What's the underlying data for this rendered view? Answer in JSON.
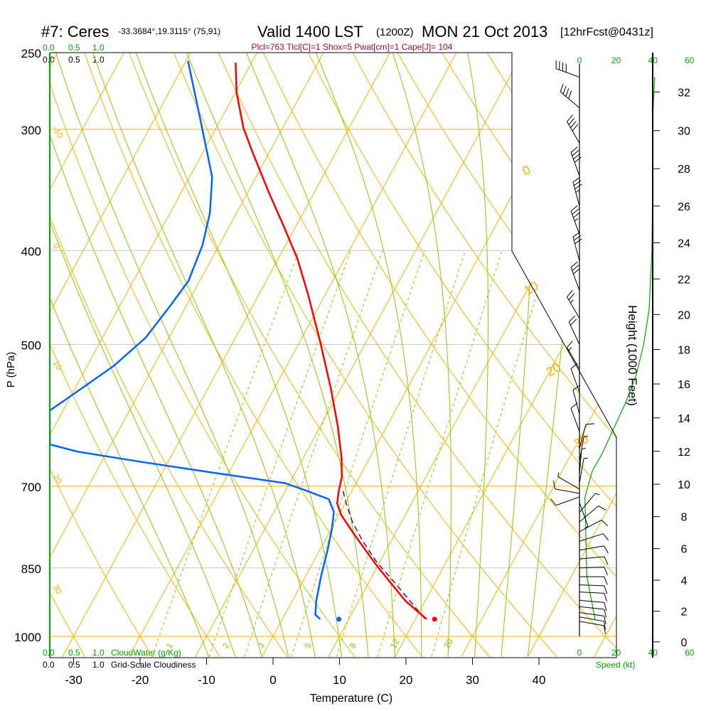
{
  "header": {
    "station": "#7: Ceres",
    "coords": "-33.3684°,19.3115° (75,91)",
    "valid": "Valid 1400 LST",
    "zulu": "(1200Z)",
    "date": "MON 21 Oct 2013",
    "forecast": "[12hrFcst@0431z]",
    "indices": "Plcl=763 Tlcl[C]=1 Shox=5 Pwat[cm]=1 Cape[J]= 104"
  },
  "colors": {
    "temperature": "#ff0000",
    "dewpoint": "#0066ff",
    "parcel": "#800040",
    "isotherm": "#ffb000",
    "moist_adiabat": "#88cc00",
    "mixing_ratio": "#88cc00",
    "wind_speed": "#00aa00",
    "indices": "#b0004a"
  },
  "chart_data": {
    "type": "skew-t",
    "title": "#7: Ceres Valid 1400 LST MON 21 Oct 2013",
    "xlabel": "Temperature (C)",
    "ylabel": "P (hPa)",
    "y2label": "Height (1000 Feet)",
    "x_ticks": [
      "-30",
      "-20",
      "-10",
      "0",
      "10",
      "20",
      "30",
      "40"
    ],
    "x_tick_values": [
      -30,
      -20,
      -10,
      0,
      10,
      20,
      30,
      40
    ],
    "y_ticks": [
      "250",
      "300",
      "400",
      "500",
      "700",
      "850",
      "1000"
    ],
    "y_tick_values": [
      250,
      300,
      400,
      500,
      700,
      850,
      1000
    ],
    "height_ticks": [
      "0",
      "2",
      "4",
      "6",
      "8",
      "10",
      "12",
      "14",
      "16",
      "18",
      "20",
      "22",
      "24",
      "26",
      "28",
      "30",
      "32"
    ],
    "ylim": [
      1000,
      250
    ],
    "isotherm_labels": [
      "0",
      "10",
      "20",
      "30"
    ],
    "isotherm_label_values": [
      0,
      10,
      20,
      30
    ],
    "adiabat_labels": [
      "-10",
      "0",
      "10",
      "20",
      "30"
    ],
    "mixing_ratio_labels": [
      "1",
      "2",
      "3",
      "5",
      "8",
      "12",
      "20"
    ],
    "mixing_ratio_values": [
      1,
      2,
      3,
      5,
      8,
      12,
      20
    ],
    "temperature": {
      "p": [
        960,
        919,
        845,
        789,
        750,
        729,
        707,
        686,
        655,
        607,
        554,
        496,
        444,
        408,
        379,
        348,
        317,
        299,
        275,
        256
      ],
      "t": [
        21.7,
        17.0,
        9.8,
        4.3,
        0.4,
        -1.2,
        -2.0,
        -2.6,
        -4.2,
        -7.4,
        -11.6,
        -17.0,
        -22.6,
        -27.1,
        -31.6,
        -36.9,
        -42.5,
        -45.9,
        -49.8,
        -52.4
      ]
    },
    "dewpoint": {
      "p": [
        960,
        950,
        919,
        866,
        816,
        775,
        744,
        722,
        707,
        695,
        678,
        661,
        645,
        634,
        585,
        558,
        526,
        492,
        456,
        430,
        395,
        366,
        336,
        314,
        291,
        255
      ],
      "t": [
        5.7,
        4.6,
        3.6,
        2.3,
        1.2,
        0.1,
        -1.0,
        -2.8,
        -7.0,
        -10.7,
        -22.3,
        -33.9,
        -44.4,
        -49.2,
        -52.0,
        -49.3,
        -46.0,
        -43.5,
        -42.4,
        -41.7,
        -42.5,
        -44.0,
        -46.6,
        -49.8,
        -53.4,
        -59.7
      ]
    },
    "parcel": {
      "p": [
        959,
        880,
        838,
        796,
        762,
        731,
        707
      ],
      "t": [
        21.4,
        13.9,
        9.5,
        5.6,
        2.6,
        0.3,
        -1.4
      ]
    },
    "surface_temperature": {
      "p": 960,
      "t": 22.9
    },
    "surface_dewpoint": {
      "p": 960,
      "t": 8.5
    },
    "wind_speed_profile": {
      "xlabel": "Speed (kt)",
      "ticks": [
        "0",
        "20",
        "40",
        "60"
      ],
      "tick_values": [
        0,
        20,
        40,
        60
      ],
      "p": [
        960,
        866,
        720,
        707,
        675,
        650,
        600,
        575,
        537,
        500,
        460,
        400,
        330,
        290,
        265
      ],
      "speed": [
        8.5,
        4,
        3,
        4,
        7,
        12,
        20.5,
        25,
        31,
        35,
        38,
        39.5,
        40,
        40,
        41
      ]
    },
    "wind_barbs": [
      {
        "p": 965,
        "dir": 100,
        "spd": 10
      },
      {
        "p": 955,
        "dir": 100,
        "spd": 10
      },
      {
        "p": 945,
        "dir": 98,
        "spd": 10
      },
      {
        "p": 932,
        "dir": 96,
        "spd": 10
      },
      {
        "p": 918,
        "dir": 95,
        "spd": 10
      },
      {
        "p": 900,
        "dir": 93,
        "spd": 10
      },
      {
        "p": 885,
        "dir": 92,
        "spd": 10
      },
      {
        "p": 868,
        "dir": 90,
        "spd": 10
      },
      {
        "p": 850,
        "dir": 88,
        "spd": 10
      },
      {
        "p": 832,
        "dir": 85,
        "spd": 10
      },
      {
        "p": 815,
        "dir": 80,
        "spd": 10
      },
      {
        "p": 798,
        "dir": 72,
        "spd": 10
      },
      {
        "p": 780,
        "dir": 62,
        "spd": 10
      },
      {
        "p": 762,
        "dir": 50,
        "spd": 10
      },
      {
        "p": 745,
        "dir": 40,
        "spd": 5
      },
      {
        "p": 728,
        "dir": 160,
        "spd": 5
      },
      {
        "p": 718,
        "dir": 250,
        "spd": 10
      },
      {
        "p": 712,
        "dir": 280,
        "spd": 10
      },
      {
        "p": 705,
        "dir": 300,
        "spd": 5
      },
      {
        "p": 695,
        "dir": 10,
        "spd": 5
      },
      {
        "p": 680,
        "dir": 5,
        "spd": 5
      },
      {
        "p": 660,
        "dir": 10,
        "spd": 5
      },
      {
        "p": 640,
        "dir": 15,
        "spd": 10
      },
      {
        "p": 615,
        "dir": 340,
        "spd": 10
      },
      {
        "p": 590,
        "dir": 345,
        "spd": 10
      },
      {
        "p": 560,
        "dir": 340,
        "spd": 10
      },
      {
        "p": 530,
        "dir": 330,
        "spd": 15
      },
      {
        "p": 500,
        "dir": 335,
        "spd": 20
      },
      {
        "p": 470,
        "dir": 330,
        "spd": 25
      },
      {
        "p": 440,
        "dir": 340,
        "spd": 30
      },
      {
        "p": 410,
        "dir": 345,
        "spd": 30
      },
      {
        "p": 385,
        "dir": 340,
        "spd": 35
      },
      {
        "p": 360,
        "dir": 345,
        "spd": 35
      },
      {
        "p": 335,
        "dir": 340,
        "spd": 40
      },
      {
        "p": 310,
        "dir": 330,
        "spd": 40
      },
      {
        "p": 285,
        "dir": 310,
        "spd": 40
      },
      {
        "p": 265,
        "dir": 290,
        "spd": 40
      }
    ]
  },
  "cloud": {
    "cloudwater_ticks": [
      "0.0",
      "0.5",
      "1.0"
    ],
    "cloudwater_label": "CloudWater (g/Kg)",
    "cloudiness_ticks": [
      "0.0",
      "0.5",
      "1.0"
    ],
    "cloudiness_label": "Grid-Scale Cloudiness"
  }
}
